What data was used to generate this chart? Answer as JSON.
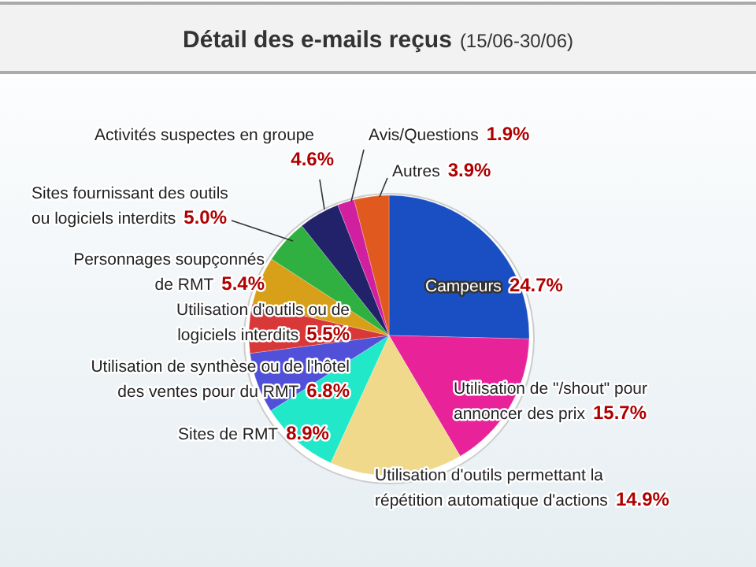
{
  "chart_data": {
    "type": "pie",
    "title": "Détail des e-mails reçus",
    "subtitle": "(15/06-30/06)",
    "categories": [
      "Campeurs",
      "Utilisation de \"/shout\" pour annoncer des prix",
      "Utilisation d'outils permettant la répétition automatique d'actions",
      "Sites de RMT",
      "Utilisation de synthèse ou de l'hôtel des ventes pour du RMT",
      "Utilisation d'outils ou de logiciels interdits",
      "Personnages soupçonnés de RMT",
      "Sites fournissant des outils ou logiciels interdits",
      "Activités suspectes en groupe",
      "Avis/Questions",
      "Autres"
    ],
    "values": [
      24.7,
      15.7,
      14.9,
      8.9,
      6.8,
      5.5,
      5.4,
      5.0,
      4.6,
      1.9,
      3.9
    ],
    "value_labels": [
      "24.7%",
      "15.7%",
      "14.9%",
      "8.9%",
      "6.8%",
      "5.5%",
      "5.4%",
      "5.0%",
      "4.6%",
      "1.9%",
      "3.9%"
    ],
    "colors": [
      "#1a4fc4",
      "#e8239a",
      "#f0d98a",
      "#20e8c8",
      "#5050d8",
      "#d83838",
      "#d8a018",
      "#30b040",
      "#22226a",
      "#d020a0",
      "#e05a20"
    ]
  }
}
